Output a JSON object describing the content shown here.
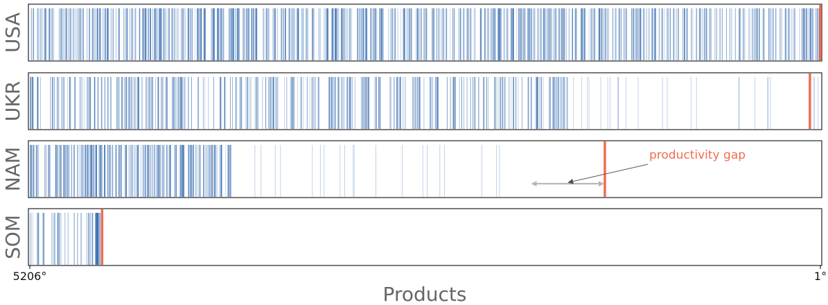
{
  "chart_data": {
    "type": "barcode",
    "x_axis": {
      "label": "Products",
      "ticks": [
        "5206°",
        "1°"
      ],
      "range": [
        5206,
        1
      ],
      "reversed": true
    },
    "series": [
      {
        "name": "USA",
        "count": 5206,
        "segments": [
          [
            5206,
            1
          ]
        ],
        "line_count": 700,
        "marker_rank": 1
      },
      {
        "name": "UKR",
        "count": 3820,
        "segments": [
          [
            5206,
            1650
          ]
        ],
        "line_count": 320,
        "sparse_tail": [
          [
            1650,
            1
          ],
          25
        ],
        "marker_rank": 70
      },
      {
        "name": "NAM",
        "count": 1140,
        "segments": [
          [
            5206,
            3880
          ]
        ],
        "line_count": 200,
        "sparse_tail": [
          [
            3880,
            1910
          ],
          20
        ],
        "marker_rank": 1420
      },
      {
        "name": "SOM",
        "count": 470,
        "segments": [
          [
            5206,
            4740
          ]
        ],
        "line_count": 30,
        "dense_block": [
          4775,
          4752
        ],
        "marker_rank": 4730
      }
    ],
    "annotation": {
      "text": "productivity gap",
      "panel": "NAM",
      "arrow_from_rank": 1910,
      "arrow_to_rank": 1420
    },
    "colors": {
      "line": "#3a6fb0",
      "marker": "#f26b52",
      "annotation_arrow": "#b8b8b8",
      "annotation_pointer": "#555555",
      "frame": "#222222"
    }
  }
}
